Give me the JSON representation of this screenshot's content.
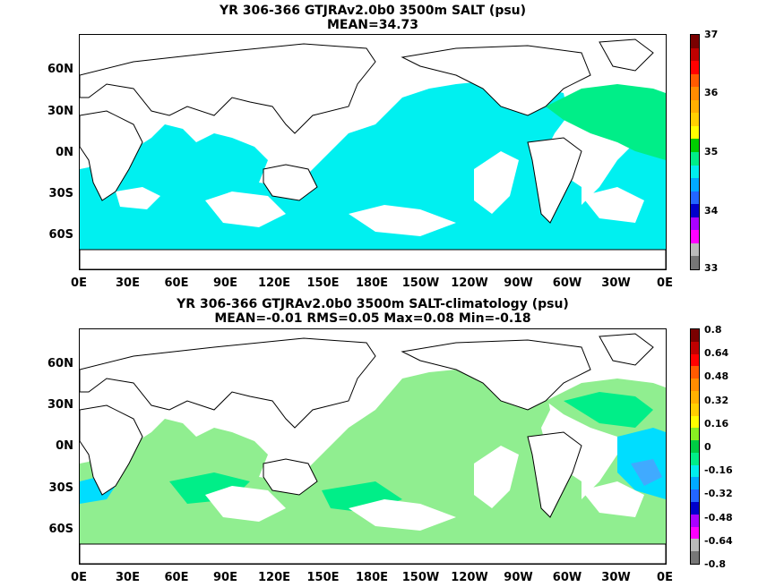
{
  "chart_data": [
    {
      "type": "heatmap",
      "title": "YR 306-366 GTJRAv2.0b0 3500m SALT (psu)",
      "subtitle": "MEAN=34.73",
      "x_ticks": [
        "0E",
        "30E",
        "60E",
        "90E",
        "120E",
        "150E",
        "180E",
        "150W",
        "120W",
        "90W",
        "60W",
        "30W",
        "0E"
      ],
      "y_ticks": [
        "60N",
        "30N",
        "0N",
        "30S",
        "60S"
      ],
      "colorbar_ticks": [
        "37",
        "36",
        "35",
        "34",
        "33"
      ],
      "colorbar_range": [
        33,
        37
      ],
      "colorbar_colors": [
        "#7a0000",
        "#c00000",
        "#ff0000",
        "#ff5a00",
        "#ff8c00",
        "#ffb000",
        "#ffd000",
        "#ffff00",
        "#00cc00",
        "#00ee88",
        "#00eeee",
        "#00aaff",
        "#2266ff",
        "#0000cc",
        "#aa00ff",
        "#ff00ff",
        "#bbbbbb",
        "#777777"
      ],
      "dominant_colors": {
        "deep_ocean": "#00f0f0",
        "north_atlantic": "#00ee88"
      }
    },
    {
      "type": "heatmap",
      "title": "YR 306-366 GTJRAv2.0b0 3500m SALT-climatology (psu)",
      "subtitle": "MEAN=-0.01   RMS=0.05   Max=0.08   Min=-0.18",
      "x_ticks": [
        "0E",
        "30E",
        "60E",
        "90E",
        "120E",
        "150E",
        "180E",
        "150W",
        "120W",
        "90W",
        "60W",
        "30W",
        "0E"
      ],
      "y_ticks": [
        "60N",
        "30N",
        "0N",
        "30S",
        "60S"
      ],
      "colorbar_ticks": [
        "0.8",
        "0.64",
        "0.48",
        "0.32",
        "0.16",
        "0",
        "-0.16",
        "-0.32",
        "-0.48",
        "-0.64",
        "-0.8"
      ],
      "colorbar_range": [
        -0.8,
        0.8
      ],
      "colorbar_colors": [
        "#7a0000",
        "#c00000",
        "#ff0000",
        "#ff5a00",
        "#ff8c00",
        "#ffb000",
        "#ffd000",
        "#ffff00",
        "#88ee22",
        "#00cc44",
        "#00ee88",
        "#00eeee",
        "#00aaff",
        "#2266ff",
        "#0000cc",
        "#aa00ff",
        "#ff00ff",
        "#bbbbbb",
        "#777777"
      ],
      "dominant_colors": {
        "near_zero": "#90ee90",
        "slight_negative": "#00ee88",
        "negative": "#00ddff"
      }
    }
  ]
}
